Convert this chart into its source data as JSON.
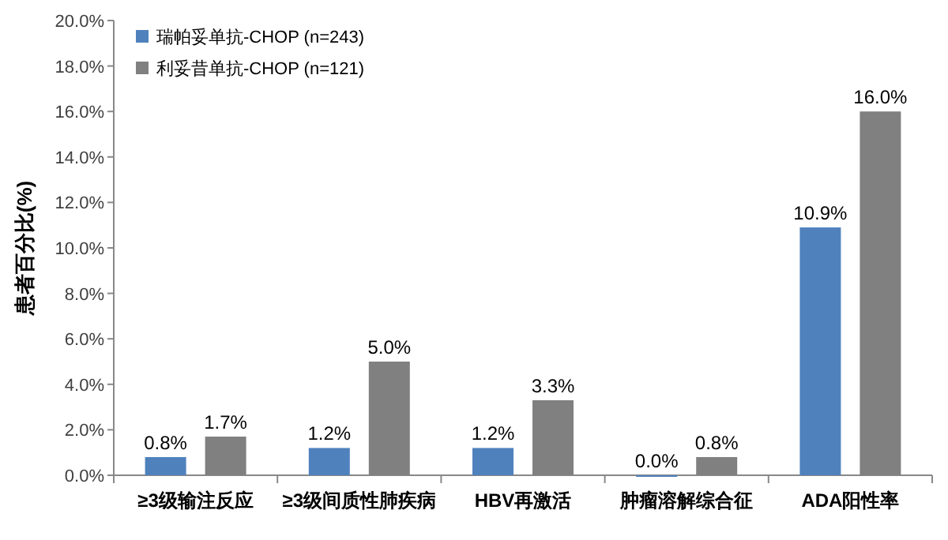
{
  "chart_data": {
    "type": "bar",
    "ylabel": "患者百分比(%)",
    "categories": [
      "≥3级输注反应",
      "≥3级间质性肺疾病",
      "HBV再激活",
      "肿瘤溶解综合征",
      "ADA阳性率"
    ],
    "series": [
      {
        "name": "瑞帕妥单抗-CHOP (n=243)",
        "color": "#4f81bd",
        "values": [
          0.8,
          1.2,
          1.2,
          0.0,
          10.9
        ],
        "value_labels": [
          "0.8%",
          "1.2%",
          "1.2%",
          "0.0%",
          "10.9%"
        ]
      },
      {
        "name": "利妥昔单抗-CHOP (n=121)",
        "color": "#808080",
        "values": [
          1.7,
          5.0,
          3.3,
          0.8,
          16.0
        ],
        "value_labels": [
          "1.7%",
          "5.0%",
          "3.3%",
          "0.8%",
          "16.0%"
        ]
      }
    ],
    "ylim": [
      0,
      20
    ],
    "yticks": [
      {
        "value": 0,
        "label": "0.0%"
      },
      {
        "value": 2,
        "label": "2.0%"
      },
      {
        "value": 4,
        "label": "4.0%"
      },
      {
        "value": 6,
        "label": "6.0%"
      },
      {
        "value": 8,
        "label": "8.0%"
      },
      {
        "value": 10,
        "label": "10.0%"
      },
      {
        "value": 12,
        "label": "12.0%"
      },
      {
        "value": 14,
        "label": "14.0%"
      },
      {
        "value": 16,
        "label": "16.0%"
      },
      {
        "value": 18,
        "label": "18.0%"
      },
      {
        "value": 20,
        "label": "20.0%"
      }
    ],
    "legend": "top left"
  }
}
